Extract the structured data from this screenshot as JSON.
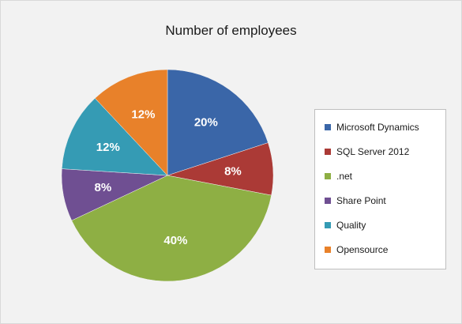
{
  "chart_data": {
    "type": "pie",
    "title": "Number of employees",
    "categories": [
      "Microsoft Dynamics",
      "SQL Server 2012",
      ".net",
      "Share Point",
      "Quality",
      "Opensource"
    ],
    "values": [
      20,
      8,
      40,
      8,
      12,
      12
    ],
    "data_labels": [
      "20%",
      "8%",
      "40%",
      "8%",
      "12%",
      "12%"
    ],
    "colors": [
      "#3a66a8",
      "#ab3a36",
      "#8eaf44",
      "#6f4f92",
      "#359bb4",
      "#e8812a"
    ],
    "legend_position": "right"
  }
}
